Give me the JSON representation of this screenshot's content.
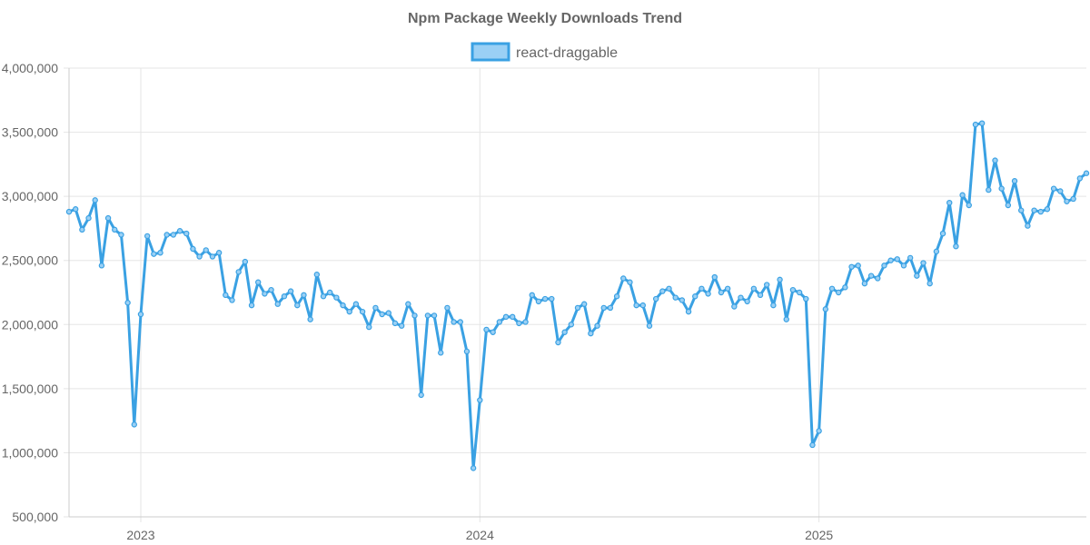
{
  "chart_data": {
    "type": "line",
    "title": "Npm Package Weekly Downloads Trend",
    "xlabel": "",
    "ylabel": "",
    "ylim": [
      500000,
      4000000
    ],
    "yticks": [
      "500,000",
      "1,000,000",
      "1,500,000",
      "2,000,000",
      "2,500,000",
      "3,000,000",
      "3,500,000",
      "4,000,000"
    ],
    "ytick_values": [
      500000,
      1000000,
      1500000,
      2000000,
      2500000,
      3000000,
      3500000,
      4000000
    ],
    "xtick_labels": [
      "2023",
      "2024",
      "2025"
    ],
    "xtick_week_index": [
      11,
      63,
      115
    ],
    "legend": {
      "position": "top",
      "labels": [
        "react-draggable"
      ]
    },
    "grid": true,
    "colors": {
      "line": "#3aa1e3",
      "fill": "#9ad0f5",
      "grid": "#e5e5e5",
      "text": "#666666"
    },
    "x_unit": "week index",
    "series": [
      {
        "name": "react-draggable",
        "values": [
          2880000,
          2900000,
          2740000,
          2830000,
          2970000,
          2460000,
          2830000,
          2740000,
          2700000,
          2170000,
          1220000,
          2080000,
          2690000,
          2550000,
          2560000,
          2700000,
          2700000,
          2730000,
          2710000,
          2590000,
          2530000,
          2580000,
          2530000,
          2560000,
          2230000,
          2190000,
          2410000,
          2490000,
          2150000,
          2330000,
          2240000,
          2270000,
          2160000,
          2220000,
          2260000,
          2150000,
          2230000,
          2040000,
          2390000,
          2220000,
          2250000,
          2210000,
          2150000,
          2100000,
          2160000,
          2100000,
          1980000,
          2130000,
          2080000,
          2090000,
          2010000,
          1990000,
          2160000,
          2070000,
          1450000,
          2070000,
          2070000,
          1780000,
          2130000,
          2020000,
          2020000,
          1790000,
          880000,
          1410000,
          1960000,
          1940000,
          2020000,
          2060000,
          2060000,
          2010000,
          2020000,
          2230000,
          2180000,
          2200000,
          2200000,
          1860000,
          1940000,
          2000000,
          2130000,
          2160000,
          1930000,
          1990000,
          2130000,
          2130000,
          2220000,
          2360000,
          2330000,
          2150000,
          2150000,
          1990000,
          2200000,
          2260000,
          2280000,
          2210000,
          2190000,
          2100000,
          2220000,
          2280000,
          2240000,
          2370000,
          2250000,
          2280000,
          2140000,
          2210000,
          2180000,
          2280000,
          2230000,
          2310000,
          2150000,
          2350000,
          2040000,
          2270000,
          2250000,
          2200000,
          1060000,
          1170000,
          2120000,
          2280000,
          2250000,
          2290000,
          2450000,
          2460000,
          2320000,
          2380000,
          2360000,
          2460000,
          2500000,
          2510000,
          2460000,
          2520000,
          2380000,
          2480000,
          2320000,
          2570000,
          2710000,
          2950000,
          2610000,
          3010000,
          2930000,
          3560000,
          3570000,
          3050000,
          3280000,
          3060000,
          2930000,
          3120000,
          2890000,
          2770000,
          2890000,
          2880000,
          2900000,
          3060000,
          3040000,
          2960000,
          2980000,
          3140000,
          3180000
        ]
      }
    ]
  }
}
